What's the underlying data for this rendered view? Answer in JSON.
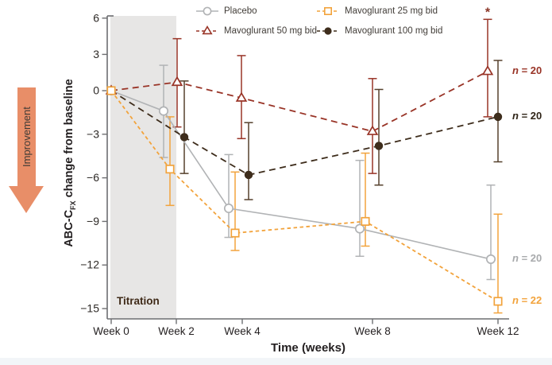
{
  "figure": {
    "improvement_label": "Improvement",
    "titration_label": "Titration",
    "x_axis_title": "Time (weeks)",
    "y_axis_title": {
      "prefix": "ABC-C",
      "subscript": "FX",
      "suffix": " change from baseline"
    }
  },
  "chart_data": {
    "type": "line",
    "x_weeks": [
      0,
      2,
      4,
      8,
      12
    ],
    "x_tick_labels": [
      "Week 0",
      "Week 2",
      "Week 4",
      "Week 8",
      "Week 12"
    ],
    "y_ticks": [
      6,
      3,
      0,
      -3,
      -6,
      -9,
      -12,
      -15
    ],
    "y_tick_labels": [
      "6",
      "3",
      "0",
      "−3",
      "−6",
      "−9",
      "−12",
      "−15"
    ],
    "ylim": [
      -15,
      6
    ],
    "xlabel": "Time (weeks)",
    "ylabel": "ABC-CFX change from baseline",
    "titration_band_weeks": [
      0,
      2
    ],
    "legend_position": "top",
    "grid": false,
    "series": [
      {
        "name": "Placebo",
        "color": "#b1b3b5",
        "marker": "open-circle",
        "line_style": "solid",
        "values": [
          0,
          -1.4,
          -8.1,
          -9.5,
          -11.6
        ],
        "ci_high": [
          null,
          2.1,
          -4.4,
          -4.8,
          -6.5
        ],
        "ci_low": [
          null,
          -4.6,
          -10.1,
          -11.4,
          -13.0
        ],
        "n_label": "n = 20"
      },
      {
        "name": "Mavoglurant 25 mg bid",
        "color": "#f2a33c",
        "marker": "open-square",
        "line_style": "dashed",
        "values": [
          0,
          -5.4,
          -9.8,
          -9.0,
          -14.5
        ],
        "ci_high": [
          null,
          -1.8,
          -5.6,
          -4.3,
          -8.5
        ],
        "ci_low": [
          null,
          -7.9,
          -11.0,
          -10.7,
          -15.3
        ],
        "n_label": "n = 22"
      },
      {
        "name": "Mavoglurant 50 mg bid",
        "color": "#993427",
        "marker": "open-triangle",
        "line_style": "dashed",
        "values": [
          0,
          0.7,
          -0.5,
          -2.8,
          1.6
        ],
        "ci_high": [
          null,
          4.3,
          2.9,
          1.0,
          5.9
        ],
        "ci_low": [
          null,
          -2.5,
          -3.3,
          -5.7,
          -1.8
        ],
        "n_label": "n = 20",
        "significance": "*"
      },
      {
        "name": "Mavoglurant 100 mg bid",
        "color": "#3e2d1c",
        "bar_color": "#55402c",
        "marker": "filled-circle",
        "line_style": "dashed",
        "values": [
          0,
          -3.2,
          -5.8,
          -3.8,
          -1.8
        ],
        "ci_high": [
          null,
          0.8,
          -2.2,
          0.1,
          2.5
        ],
        "ci_low": [
          null,
          -5.7,
          -7.5,
          -6.5,
          -4.9
        ],
        "n_label": "n = 20"
      }
    ]
  }
}
